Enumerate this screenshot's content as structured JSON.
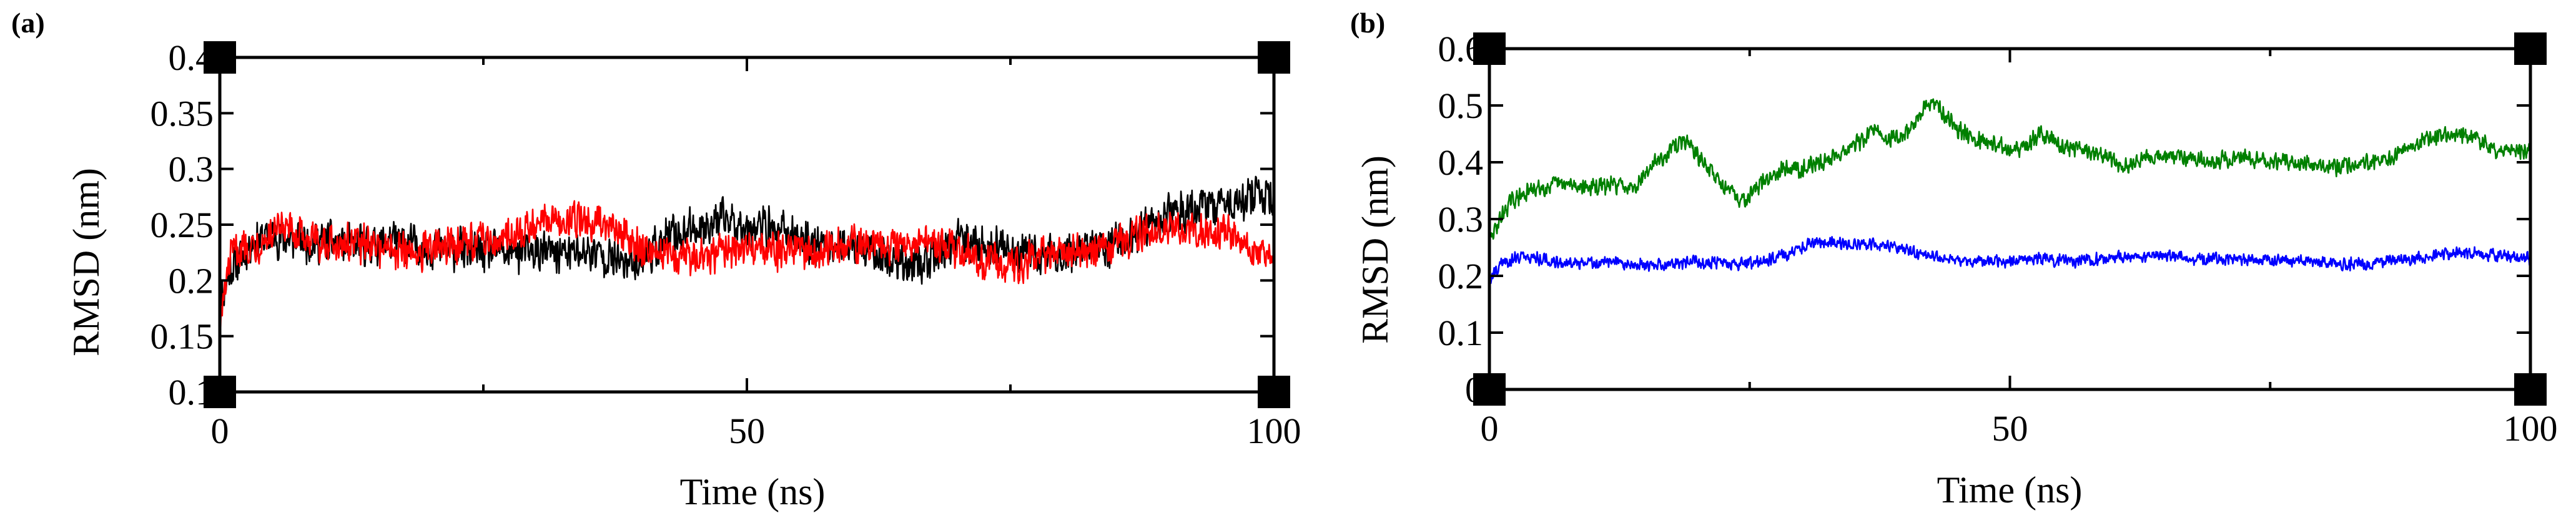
{
  "chart_data": [
    {
      "panel_label": "(a)",
      "type": "line",
      "title": "",
      "xlabel": "Time (ns)",
      "ylabel": "RMSD (nm)",
      "xlim": [
        0,
        100
      ],
      "ylim": [
        0.1,
        0.4
      ],
      "x_ticks": [
        0,
        50,
        100
      ],
      "x_tick_labels": [
        "0",
        "50",
        "100"
      ],
      "x_minor_step": 25,
      "y_ticks": [
        0.1,
        0.15,
        0.2,
        0.25,
        0.3,
        0.35,
        0.4
      ],
      "y_tick_labels": [
        "0.1",
        "0.15",
        "0.2",
        "0.25",
        "0.3",
        "0.35",
        "0.4"
      ],
      "grid": false,
      "legend": "none",
      "series": [
        {
          "color": "#000000",
          "noise": 0.022,
          "points": [
            [
              0,
              0.18
            ],
            [
              1,
              0.21
            ],
            [
              2,
              0.22
            ],
            [
              3,
              0.235
            ],
            [
              5,
              0.24
            ],
            [
              7,
              0.235
            ],
            [
              10,
              0.235
            ],
            [
              13,
              0.23
            ],
            [
              16,
              0.235
            ],
            [
              20,
              0.23
            ],
            [
              25,
              0.225
            ],
            [
              28,
              0.225
            ],
            [
              30,
              0.225
            ],
            [
              33,
              0.225
            ],
            [
              36,
              0.225
            ],
            [
              38,
              0.215
            ],
            [
              40,
              0.22
            ],
            [
              43,
              0.24
            ],
            [
              46,
              0.25
            ],
            [
              48,
              0.255
            ],
            [
              50,
              0.25
            ],
            [
              53,
              0.245
            ],
            [
              56,
              0.235
            ],
            [
              59,
              0.23
            ],
            [
              62,
              0.225
            ],
            [
              65,
              0.215
            ],
            [
              67,
              0.215
            ],
            [
              70,
              0.235
            ],
            [
              73,
              0.23
            ],
            [
              76,
              0.225
            ],
            [
              78,
              0.22
            ],
            [
              80,
              0.225
            ],
            [
              83,
              0.23
            ],
            [
              86,
              0.235
            ],
            [
              88,
              0.245
            ],
            [
              90,
              0.26
            ],
            [
              93,
              0.265
            ],
            [
              96,
              0.27
            ],
            [
              98,
              0.275
            ],
            [
              100,
              0.27
            ]
          ]
        },
        {
          "color": "#ff0000",
          "noise": 0.02,
          "points": [
            [
              0,
              0.16
            ],
            [
              1,
              0.22
            ],
            [
              2,
              0.23
            ],
            [
              4,
              0.235
            ],
            [
              6,
              0.245
            ],
            [
              9,
              0.235
            ],
            [
              12,
              0.235
            ],
            [
              15,
              0.23
            ],
            [
              18,
              0.225
            ],
            [
              21,
              0.23
            ],
            [
              24,
              0.235
            ],
            [
              27,
              0.24
            ],
            [
              30,
              0.25
            ],
            [
              33,
              0.255
            ],
            [
              35,
              0.255
            ],
            [
              37,
              0.25
            ],
            [
              40,
              0.23
            ],
            [
              43,
              0.225
            ],
            [
              46,
              0.22
            ],
            [
              50,
              0.23
            ],
            [
              54,
              0.225
            ],
            [
              57,
              0.225
            ],
            [
              60,
              0.235
            ],
            [
              63,
              0.23
            ],
            [
              66,
              0.235
            ],
            [
              69,
              0.23
            ],
            [
              72,
              0.22
            ],
            [
              75,
              0.215
            ],
            [
              78,
              0.22
            ],
            [
              81,
              0.225
            ],
            [
              84,
              0.23
            ],
            [
              87,
              0.24
            ],
            [
              90,
              0.245
            ],
            [
              93,
              0.245
            ],
            [
              96,
              0.24
            ],
            [
              98,
              0.23
            ],
            [
              100,
              0.225
            ]
          ]
        }
      ]
    },
    {
      "panel_label": "(b)",
      "type": "line",
      "title": "",
      "xlabel": "Time (ns)",
      "ylabel": "RMSD (nm)",
      "xlim": [
        0,
        100
      ],
      "ylim": [
        0,
        0.6
      ],
      "x_ticks": [
        0,
        50,
        100
      ],
      "x_tick_labels": [
        "0",
        "50",
        "100"
      ],
      "x_minor_step": 25,
      "y_ticks": [
        0,
        0.1,
        0.2,
        0.3,
        0.4,
        0.5,
        0.6
      ],
      "y_tick_labels": [
        "0",
        "0.1",
        "0.2",
        "0.3",
        "0.4",
        "0.5",
        "0.6"
      ],
      "grid": false,
      "legend": "none",
      "series": [
        {
          "color": "#008000",
          "noise": 0.018,
          "points": [
            [
              0,
              0.26
            ],
            [
              1,
              0.3
            ],
            [
              2,
              0.33
            ],
            [
              4,
              0.35
            ],
            [
              6,
              0.36
            ],
            [
              8,
              0.36
            ],
            [
              10,
              0.355
            ],
            [
              12,
              0.36
            ],
            [
              14,
              0.36
            ],
            [
              16,
              0.4
            ],
            [
              18,
              0.43
            ],
            [
              19,
              0.44
            ],
            [
              20,
              0.41
            ],
            [
              22,
              0.37
            ],
            [
              24,
              0.33
            ],
            [
              26,
              0.36
            ],
            [
              28,
              0.39
            ],
            [
              30,
              0.39
            ],
            [
              32,
              0.4
            ],
            [
              34,
              0.42
            ],
            [
              36,
              0.44
            ],
            [
              37,
              0.46
            ],
            [
              38,
              0.44
            ],
            [
              40,
              0.45
            ],
            [
              42,
              0.5
            ],
            [
              43,
              0.5
            ],
            [
              45,
              0.46
            ],
            [
              47,
              0.44
            ],
            [
              49,
              0.43
            ],
            [
              51,
              0.42
            ],
            [
              53,
              0.45
            ],
            [
              55,
              0.43
            ],
            [
              57,
              0.42
            ],
            [
              59,
              0.41
            ],
            [
              61,
              0.39
            ],
            [
              63,
              0.41
            ],
            [
              66,
              0.41
            ],
            [
              69,
              0.4
            ],
            [
              72,
              0.41
            ],
            [
              75,
              0.4
            ],
            [
              78,
              0.4
            ],
            [
              81,
              0.39
            ],
            [
              84,
              0.4
            ],
            [
              87,
              0.41
            ],
            [
              90,
              0.44
            ],
            [
              93,
              0.45
            ],
            [
              95,
              0.44
            ],
            [
              97,
              0.42
            ],
            [
              99,
              0.42
            ],
            [
              100,
              0.42
            ]
          ]
        },
        {
          "color": "#0000ff",
          "noise": 0.013,
          "points": [
            [
              0,
              0.19
            ],
            [
              1,
              0.22
            ],
            [
              3,
              0.235
            ],
            [
              5,
              0.23
            ],
            [
              8,
              0.22
            ],
            [
              11,
              0.225
            ],
            [
              14,
              0.22
            ],
            [
              17,
              0.22
            ],
            [
              20,
              0.225
            ],
            [
              23,
              0.22
            ],
            [
              26,
              0.225
            ],
            [
              29,
              0.24
            ],
            [
              31,
              0.26
            ],
            [
              33,
              0.26
            ],
            [
              35,
              0.255
            ],
            [
              37,
              0.255
            ],
            [
              39,
              0.25
            ],
            [
              41,
              0.24
            ],
            [
              44,
              0.23
            ],
            [
              47,
              0.225
            ],
            [
              50,
              0.225
            ],
            [
              53,
              0.23
            ],
            [
              56,
              0.225
            ],
            [
              59,
              0.23
            ],
            [
              62,
              0.235
            ],
            [
              65,
              0.235
            ],
            [
              68,
              0.23
            ],
            [
              71,
              0.23
            ],
            [
              74,
              0.23
            ],
            [
              77,
              0.225
            ],
            [
              80,
              0.225
            ],
            [
              83,
              0.22
            ],
            [
              86,
              0.225
            ],
            [
              89,
              0.23
            ],
            [
              92,
              0.24
            ],
            [
              95,
              0.24
            ],
            [
              97,
              0.235
            ],
            [
              100,
              0.23
            ]
          ]
        }
      ]
    }
  ]
}
